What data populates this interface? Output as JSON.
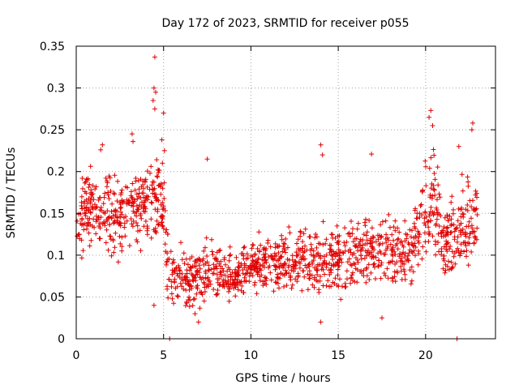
{
  "chart_data": {
    "type": "scatter",
    "title": "Day 172 of 2023, SRMTID for receiver p055",
    "xlabel": "GPS time / hours",
    "ylabel": "SRMTID / TECUs",
    "xlim": [
      0,
      24
    ],
    "ylim": [
      0,
      0.35
    ],
    "x_ticks": [
      0,
      5,
      10,
      15,
      20
    ],
    "x_tick_labels": [
      "0",
      "5",
      "10",
      "15",
      "20"
    ],
    "y_ticks": [
      0,
      0.05,
      0.1,
      0.15,
      0.2,
      0.25,
      0.3,
      0.35
    ],
    "y_tick_labels": [
      "0",
      "0.05",
      "0.1",
      "0.15",
      "0.2",
      "0.25",
      "0.3",
      "0.35"
    ],
    "grid": true,
    "marker": "plus",
    "color": "#e00000",
    "series": [
      {
        "name": "SRMTID",
        "x_range": [
          0,
          23
        ],
        "trend": [
          [
            0.0,
            0.12,
            0.03
          ],
          [
            0.5,
            0.16,
            0.035
          ],
          [
            1.5,
            0.15,
            0.03
          ],
          [
            2.5,
            0.14,
            0.03
          ],
          [
            3.5,
            0.16,
            0.035
          ],
          [
            4.5,
            0.17,
            0.04
          ],
          [
            5.0,
            0.15,
            0.04
          ],
          [
            5.3,
            0.08,
            0.03
          ],
          [
            6.5,
            0.07,
            0.025
          ],
          [
            8.0,
            0.085,
            0.025
          ],
          [
            9.0,
            0.07,
            0.02
          ],
          [
            10.0,
            0.09,
            0.025
          ],
          [
            11.0,
            0.09,
            0.025
          ],
          [
            12.0,
            0.09,
            0.025
          ],
          [
            13.0,
            0.095,
            0.025
          ],
          [
            14.0,
            0.095,
            0.03
          ],
          [
            15.0,
            0.1,
            0.03
          ],
          [
            16.0,
            0.1,
            0.03
          ],
          [
            17.0,
            0.11,
            0.03
          ],
          [
            18.0,
            0.105,
            0.03
          ],
          [
            19.0,
            0.1,
            0.03
          ],
          [
            20.0,
            0.16,
            0.04
          ],
          [
            20.5,
            0.17,
            0.04
          ],
          [
            21.0,
            0.11,
            0.03
          ],
          [
            22.0,
            0.13,
            0.035
          ],
          [
            23.0,
            0.15,
            0.04
          ]
        ],
        "highlights": [
          [
            4.5,
            0.337
          ],
          [
            4.45,
            0.3
          ],
          [
            4.55,
            0.295
          ],
          [
            4.4,
            0.285
          ],
          [
            4.5,
            0.275
          ],
          [
            5.0,
            0.27
          ],
          [
            4.9,
            0.238
          ],
          [
            5.05,
            0.225
          ],
          [
            3.2,
            0.245
          ],
          [
            3.25,
            0.236
          ],
          [
            1.5,
            0.232
          ],
          [
            1.4,
            0.226
          ],
          [
            7.5,
            0.215
          ],
          [
            14.0,
            0.232
          ],
          [
            14.1,
            0.22
          ],
          [
            16.9,
            0.221
          ],
          [
            20.3,
            0.273
          ],
          [
            20.2,
            0.265
          ],
          [
            20.4,
            0.255
          ],
          [
            22.7,
            0.258
          ],
          [
            22.65,
            0.25
          ],
          [
            21.9,
            0.23
          ],
          [
            5.35,
            0.0
          ],
          [
            21.8,
            0.0
          ],
          [
            14.0,
            0.02
          ],
          [
            17.5,
            0.025
          ],
          [
            7.0,
            0.02
          ],
          [
            4.45,
            0.04
          ],
          [
            6.8,
            0.03
          ]
        ]
      }
    ]
  }
}
